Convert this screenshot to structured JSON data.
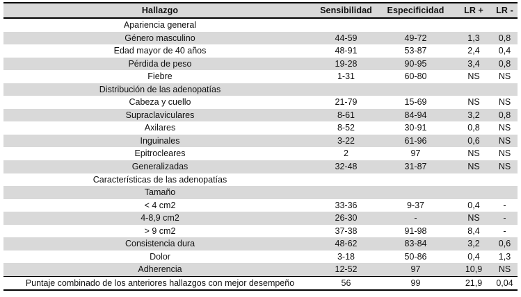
{
  "colors": {
    "row_stripe": "#d9d9d9",
    "rule": "#000000",
    "text": "#111111"
  },
  "table": {
    "columns": [
      "Hallazgo",
      "Sensibilidad",
      "Especificidad",
      "LR +",
      "LR -"
    ],
    "rows": [
      {
        "label": "Apariencia general",
        "sensibilidad": "",
        "especificidad": "",
        "lr_plus": "",
        "lr_minus": "",
        "section": true
      },
      {
        "label": "Género masculino",
        "sensibilidad": "44-59",
        "especificidad": "49-72",
        "lr_plus": "1,3",
        "lr_minus": "0,8"
      },
      {
        "label": "Edad mayor de 40 años",
        "sensibilidad": "48-91",
        "especificidad": "53-87",
        "lr_plus": "2,4",
        "lr_minus": "0,4"
      },
      {
        "label": "Pérdida de peso",
        "sensibilidad": "19-28",
        "especificidad": "90-95",
        "lr_plus": "3,4",
        "lr_minus": "0,8"
      },
      {
        "label": "Fiebre",
        "sensibilidad": "1-31",
        "especificidad": "60-80",
        "lr_plus": "NS",
        "lr_minus": "NS"
      },
      {
        "label": "Distribución de las adenopatías",
        "sensibilidad": "",
        "especificidad": "",
        "lr_plus": "",
        "lr_minus": "",
        "section": true
      },
      {
        "label": "Cabeza y cuello",
        "sensibilidad": "21-79",
        "especificidad": "15-69",
        "lr_plus": "NS",
        "lr_minus": "NS"
      },
      {
        "label": "Supraclaviculares",
        "sensibilidad": "8-61",
        "especificidad": "84-94",
        "lr_plus": "3,2",
        "lr_minus": "0,8"
      },
      {
        "label": "Axilares",
        "sensibilidad": "8-52",
        "especificidad": "30-91",
        "lr_plus": "0,8",
        "lr_minus": "NS"
      },
      {
        "label": "Inguinales",
        "sensibilidad": "3-22",
        "especificidad": "61-96",
        "lr_plus": "0,6",
        "lr_minus": "NS"
      },
      {
        "label": "Epitrocleares",
        "sensibilidad": "2",
        "especificidad": "97",
        "lr_plus": "NS",
        "lr_minus": "NS"
      },
      {
        "label": "Generalizadas",
        "sensibilidad": "32-48",
        "especificidad": "31-87",
        "lr_plus": "NS",
        "lr_minus": "NS"
      },
      {
        "label": "Características de las adenopatías",
        "sensibilidad": "",
        "especificidad": "",
        "lr_plus": "",
        "lr_minus": "",
        "section": true
      },
      {
        "label": "Tamaño",
        "sensibilidad": "",
        "especificidad": "",
        "lr_plus": "",
        "lr_minus": "",
        "section": true
      },
      {
        "label": "< 4 cm2",
        "sensibilidad": "33-36",
        "especificidad": "9-37",
        "lr_plus": "0,4",
        "lr_minus": "-"
      },
      {
        "label": "4-8,9 cm2",
        "sensibilidad": "26-30",
        "especificidad": "-",
        "lr_plus": "NS",
        "lr_minus": "-"
      },
      {
        "label": "> 9 cm2",
        "sensibilidad": "37-38",
        "especificidad": "91-98",
        "lr_plus": "8,4",
        "lr_minus": "-"
      },
      {
        "label": "Consistencia dura",
        "sensibilidad": "48-62",
        "especificidad": "83-84",
        "lr_plus": "3,2",
        "lr_minus": "0,6"
      },
      {
        "label": "Dolor",
        "sensibilidad": "3-18",
        "especificidad": "50-86",
        "lr_plus": "0,4",
        "lr_minus": "1,3"
      },
      {
        "label": "Adherencia",
        "sensibilidad": "12-52",
        "especificidad": "97",
        "lr_plus": "10,9",
        "lr_minus": "NS"
      },
      {
        "label": "Puntaje combinado de los anteriores hallazgos con mejor desempeño",
        "sensibilidad": "56",
        "especificidad": "99",
        "lr_plus": "21,9",
        "lr_minus": "0,04",
        "summary": true
      }
    ]
  }
}
